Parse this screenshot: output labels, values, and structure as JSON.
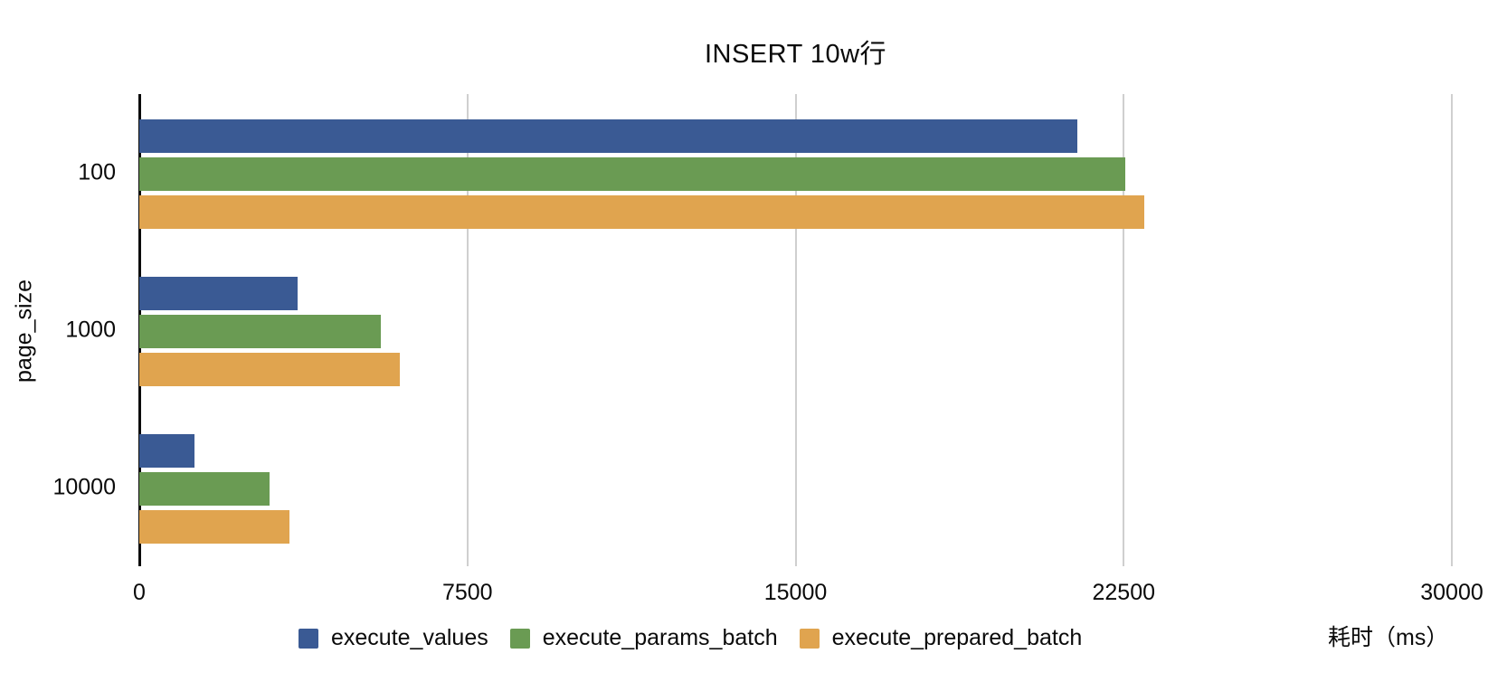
{
  "chart_data": {
    "type": "bar",
    "orientation": "horizontal",
    "title": "INSERT 10w行",
    "xlabel": "耗时（ms）",
    "ylabel": "page_size",
    "categories": [
      "100",
      "1000",
      "10000"
    ],
    "series": [
      {
        "name": "execute_values",
        "color": "#3A5A94",
        "values": [
          21450,
          3620,
          1260
        ]
      },
      {
        "name": "execute_params_batch",
        "color": "#6A9B53",
        "values": [
          22540,
          5520,
          2970
        ]
      },
      {
        "name": "execute_prepared_batch",
        "color": "#E0A44F",
        "values": [
          22970,
          5950,
          3430
        ]
      }
    ],
    "xlim": [
      0,
      30000
    ],
    "xticks": [
      0,
      7500,
      15000,
      22500,
      30000
    ],
    "grid": "vertical-gridlines",
    "legend_position": "bottom",
    "colors": {
      "grid": "#CFCFCF",
      "axis": "#0A0A0A",
      "text": "#0A0A0A",
      "background": "#FFFFFF"
    }
  }
}
